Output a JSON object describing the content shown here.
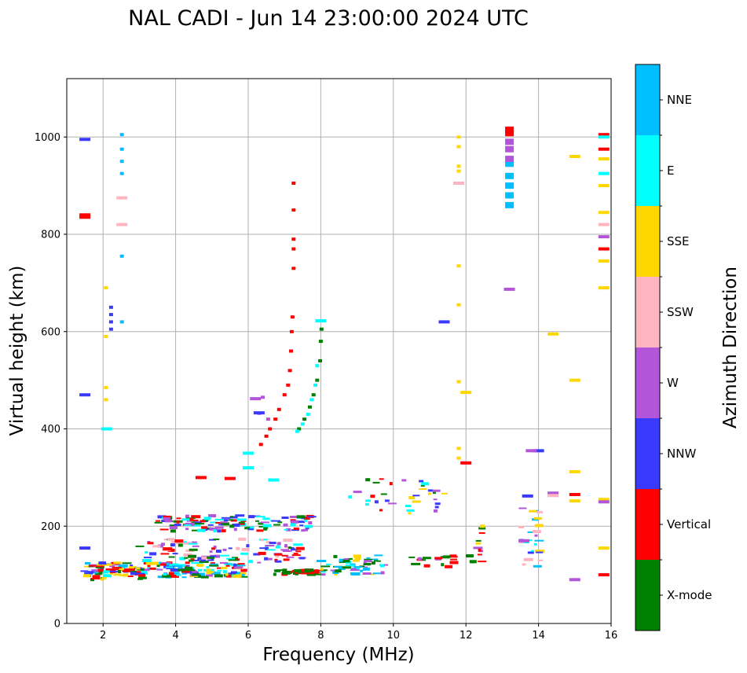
{
  "chart_data": {
    "type": "scatter",
    "title": "NAL CADI - Jun 14 23:00:00 2024 UTC",
    "xlabel": "Frequency (MHz)",
    "ylabel": "Virtual height (km)",
    "xlim": [
      1,
      16
    ],
    "ylim": [
      0,
      1120
    ],
    "xticks": [
      2,
      4,
      6,
      8,
      10,
      12,
      14,
      16
    ],
    "yticks": [
      0,
      200,
      400,
      600,
      800,
      1000
    ],
    "grid": true,
    "colorbar": {
      "label": "Azimuth Direction",
      "categories": [
        {
          "name": "X-mode",
          "color": "#008000"
        },
        {
          "name": "Vertical",
          "color": "#ff0000"
        },
        {
          "name": "NNW",
          "color": "#3a3aff"
        },
        {
          "name": "W",
          "color": "#b355d9"
        },
        {
          "name": "SSW",
          "color": "#ffb5c0"
        },
        {
          "name": "SSE",
          "color": "#ffd700"
        },
        {
          "name": "E",
          "color": "#00ffff"
        },
        {
          "name": "NNE",
          "color": "#00bfff"
        }
      ]
    },
    "segments": [
      {
        "f0": 6.7,
        "f1": 8.05,
        "h0": 100,
        "h1": 110,
        "count": 48,
        "cats": [
          "X-mode",
          "Vertical"
        ]
      },
      {
        "f0": 1.5,
        "f1": 6.0,
        "h0": 95,
        "h1": 125,
        "count": 170,
        "cats": [
          "Vertical",
          "NNW",
          "W",
          "E",
          "X-mode",
          "SSE",
          "NNE"
        ]
      },
      {
        "f0": 3.0,
        "f1": 7.5,
        "h0": 125,
        "h1": 175,
        "count": 110,
        "cats": [
          "NNW",
          "W",
          "E",
          "SSW",
          "X-mode",
          "Vertical"
        ]
      },
      {
        "f0": 3.5,
        "f1": 7.8,
        "h0": 190,
        "h1": 222,
        "count": 120,
        "cats": [
          "X-mode",
          "Vertical",
          "W",
          "E",
          "NNW"
        ]
      },
      {
        "f0": 8.0,
        "f1": 9.8,
        "h0": 100,
        "h1": 140,
        "count": 55,
        "cats": [
          "X-mode",
          "SSE",
          "W",
          "E",
          "NNE"
        ]
      },
      {
        "f0": 8.8,
        "f1": 11.5,
        "h0": 225,
        "h1": 300,
        "count": 34,
        "cats": [
          "SSE",
          "W",
          "E",
          "Vertical",
          "X-mode",
          "NNW"
        ]
      },
      {
        "f0": 10.5,
        "f1": 12.2,
        "h0": 115,
        "h1": 140,
        "count": 20,
        "cats": [
          "Vertical",
          "X-mode",
          "W"
        ]
      },
      {
        "f0": 1.4,
        "f1": 3.2,
        "h0": 90,
        "h1": 115,
        "count": 30,
        "cats": [
          "Vertical",
          "SSE",
          "NNW",
          "X-mode"
        ]
      },
      {
        "f0": 12.3,
        "f1": 12.45,
        "h0": 125,
        "h1": 210,
        "count": 10,
        "cats": [
          "W",
          "Vertical",
          "X-mode",
          "SSE"
        ]
      },
      {
        "f0": 13.5,
        "f1": 14.05,
        "h0": 90,
        "h1": 240,
        "count": 26,
        "cats": [
          "SSE",
          "NNE",
          "W",
          "SSW",
          "NNW",
          "E"
        ]
      }
    ],
    "traces": [
      {
        "name": "vertical-trace",
        "cat": "Vertical",
        "points": [
          [
            6.35,
            368
          ],
          [
            6.5,
            385
          ],
          [
            6.6,
            400
          ],
          [
            6.75,
            420
          ],
          [
            6.85,
            440
          ],
          [
            7.0,
            470
          ],
          [
            7.1,
            490
          ],
          [
            7.15,
            520
          ],
          [
            7.18,
            560
          ],
          [
            7.2,
            600
          ],
          [
            7.22,
            630
          ]
        ]
      },
      {
        "name": "xmode-trace",
        "cat": "X-mode",
        "points": [
          [
            7.4,
            400
          ],
          [
            7.55,
            420
          ],
          [
            7.7,
            445
          ],
          [
            7.8,
            470
          ],
          [
            7.9,
            500
          ],
          [
            7.98,
            540
          ],
          [
            8.0,
            580
          ],
          [
            8.02,
            605
          ]
        ]
      },
      {
        "name": "e-trace",
        "cat": "E",
        "points": [
          [
            7.35,
            395
          ],
          [
            7.5,
            410
          ],
          [
            7.65,
            430
          ],
          [
            7.75,
            460
          ],
          [
            7.85,
            490
          ],
          [
            7.9,
            530
          ]
        ]
      },
      {
        "name": "w-trace",
        "cat": "W",
        "points": [
          [
            6.3,
            432
          ],
          [
            6.4,
            465
          ],
          [
            6.55,
            420
          ]
        ]
      },
      {
        "name": "nnw-column-2.2",
        "cat": "NNW",
        "points": [
          [
            2.22,
            605
          ],
          [
            2.22,
            620
          ],
          [
            2.22,
            635
          ],
          [
            2.22,
            650
          ]
        ]
      },
      {
        "name": "nne-column-13.2",
        "cat": "NNE",
        "points": [
          [
            13.2,
            860
          ],
          [
            13.2,
            880
          ],
          [
            13.2,
            900
          ],
          [
            13.2,
            920
          ],
          [
            13.2,
            945
          ]
        ]
      },
      {
        "name": "w-column-13.2",
        "cat": "W",
        "points": [
          [
            13.2,
            955
          ],
          [
            13.2,
            975
          ],
          [
            13.2,
            990
          ]
        ]
      },
      {
        "name": "vertical-top-13.2",
        "cat": "Vertical",
        "points": [
          [
            13.2,
            1008
          ],
          [
            13.2,
            1015
          ]
        ]
      },
      {
        "name": "vertical-high-7.25",
        "cat": "Vertical",
        "points": [
          [
            7.25,
            730
          ],
          [
            7.25,
            770
          ],
          [
            7.25,
            790
          ],
          [
            7.25,
            850
          ],
          [
            7.25,
            905
          ]
        ]
      },
      {
        "name": "sse-column-11.8",
        "cat": "SSE",
        "points": [
          [
            11.8,
            980
          ],
          [
            11.8,
            1000
          ],
          [
            11.8,
            940
          ],
          [
            11.8,
            930
          ],
          [
            11.8,
            735
          ],
          [
            11.8,
            655
          ],
          [
            11.8,
            497
          ],
          [
            11.8,
            360
          ],
          [
            11.8,
            340
          ]
        ]
      },
      {
        "name": "nne-column-2.5",
        "cat": "NNE",
        "points": [
          [
            2.52,
            925
          ],
          [
            2.52,
            950
          ],
          [
            2.52,
            975
          ],
          [
            2.52,
            1005
          ],
          [
            2.52,
            755
          ],
          [
            2.52,
            620
          ]
        ]
      },
      {
        "name": "sse-column-2.1",
        "cat": "SSE",
        "points": [
          [
            2.08,
            590
          ],
          [
            2.08,
            460
          ],
          [
            2.08,
            485
          ],
          [
            2.08,
            690
          ]
        ]
      },
      {
        "name": "col16-vertical",
        "cat": "Vertical",
        "points": [
          [
            15.8,
            1005
          ],
          [
            15.8,
            975
          ],
          [
            15.8,
            770
          ],
          [
            15.8,
            100
          ]
        ]
      },
      {
        "name": "col16-sse",
        "cat": "SSE",
        "points": [
          [
            15.8,
            955
          ],
          [
            15.8,
            900
          ],
          [
            15.8,
            845
          ],
          [
            15.8,
            745
          ],
          [
            15.8,
            690
          ],
          [
            15.8,
            255
          ],
          [
            15.8,
            155
          ]
        ]
      },
      {
        "name": "col16-w",
        "cat": "W",
        "points": [
          [
            15.8,
            795
          ],
          [
            15.8,
            250
          ]
        ]
      },
      {
        "name": "col16-e",
        "cat": "E",
        "points": [
          [
            15.8,
            925
          ],
          [
            15.8,
            1000
          ]
        ]
      },
      {
        "name": "col16-ssw",
        "cat": "SSW",
        "points": [
          [
            15.8,
            820
          ]
        ]
      },
      {
        "name": "isolated-sse",
        "cat": "SSE",
        "points": [
          [
            15.0,
            960
          ],
          [
            15.0,
            500
          ],
          [
            15.0,
            312
          ],
          [
            14.4,
            595
          ],
          [
            15.0,
            252
          ],
          [
            12.0,
            475
          ]
        ]
      },
      {
        "name": "isolated-vertical",
        "cat": "Vertical",
        "points": [
          [
            1.5,
            840
          ],
          [
            1.5,
            835
          ],
          [
            12.0,
            330
          ],
          [
            15.0,
            265
          ],
          [
            4.7,
            300
          ],
          [
            5.5,
            298
          ]
        ]
      },
      {
        "name": "isolated-nnw",
        "cat": "NNW",
        "points": [
          [
            1.5,
            995
          ],
          [
            1.5,
            470
          ],
          [
            11.4,
            620
          ],
          [
            13.7,
            262
          ],
          [
            14.0,
            355
          ],
          [
            6.3,
            433
          ],
          [
            1.5,
            155
          ]
        ]
      },
      {
        "name": "isolated-e",
        "cat": "E",
        "points": [
          [
            6.0,
            350
          ],
          [
            6.0,
            320
          ],
          [
            6.7,
            295
          ],
          [
            2.1,
            400
          ],
          [
            8.0,
            622
          ]
        ]
      },
      {
        "name": "isolated-w",
        "cat": "W",
        "points": [
          [
            13.2,
            687
          ],
          [
            13.8,
            355
          ],
          [
            14.4,
            268
          ],
          [
            15.0,
            90
          ],
          [
            13.6,
            170
          ],
          [
            6.2,
            462
          ]
        ]
      },
      {
        "name": "isolated-ssw",
        "cat": "SSW",
        "points": [
          [
            2.52,
            820
          ],
          [
            2.52,
            875
          ],
          [
            11.8,
            905
          ],
          [
            14.4,
            263
          ]
        ]
      }
    ]
  }
}
